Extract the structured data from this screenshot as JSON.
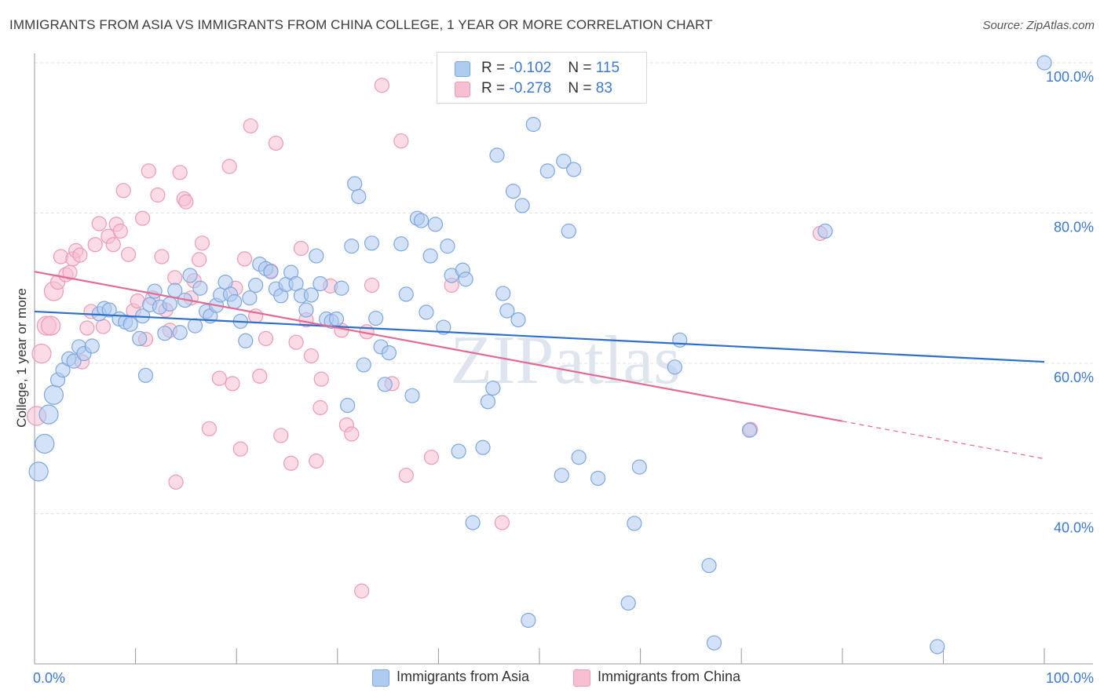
{
  "title": "IMMIGRANTS FROM ASIA VS IMMIGRANTS FROM CHINA COLLEGE, 1 YEAR OR MORE CORRELATION CHART",
  "source": "Source: ZipAtlas.com",
  "watermark": "ZIPatlas",
  "legend": {
    "rows": [
      {
        "r_label": "R = ",
        "r_value": "-0.102",
        "n_label": "N = ",
        "n_value": "115"
      },
      {
        "r_label": "R = ",
        "r_value": "-0.278",
        "n_label": "N = ",
        "n_value": "83"
      }
    ]
  },
  "bottom_legend": {
    "asia": "Immigrants from Asia",
    "china": "Immigrants from China"
  },
  "colors": {
    "asia_fill": "#aecbf0",
    "asia_stroke": "#7ea7e0",
    "asia_line": "#2f6fcc",
    "china_fill": "#f7bfd1",
    "china_stroke": "#ee9ab5",
    "china_line": "#e56a93",
    "tick_label": "#3b78d8",
    "grid": "#e4e4e4"
  },
  "chart_data": {
    "type": "scatter",
    "xlabel": "",
    "ylabel": "College, 1 year or more",
    "xlim": [
      0,
      100
    ],
    "ylim": [
      20,
      100
    ],
    "x_tick_labels": [
      "0.0%",
      "100.0%"
    ],
    "y_ticks": [
      40,
      60,
      80,
      100
    ],
    "y_tick_labels": [
      "40.0%",
      "60.0%",
      "80.0%",
      "100.0%"
    ],
    "grid": true,
    "legend_position": "top-center",
    "series": [
      {
        "name": "Immigrants from Asia",
        "trend": {
          "x": [
            0,
            100
          ],
          "y": [
            66.9,
            60.2
          ]
        },
        "points": [
          [
            0.4,
            45.6
          ],
          [
            1.0,
            49.3
          ],
          [
            1.4,
            53.2
          ],
          [
            1.9,
            55.8
          ],
          [
            2.3,
            57.8
          ],
          [
            2.8,
            59.1
          ],
          [
            3.4,
            60.6
          ],
          [
            3.9,
            60.3
          ],
          [
            4.4,
            62.2
          ],
          [
            4.9,
            61.3
          ],
          [
            5.7,
            62.3
          ],
          [
            6.4,
            66.6
          ],
          [
            6.9,
            67.3
          ],
          [
            7.4,
            67.1
          ],
          [
            8.4,
            65.9
          ],
          [
            9.0,
            65.5
          ],
          [
            9.5,
            65.2
          ],
          [
            10.4,
            63.3
          ],
          [
            10.7,
            66.3
          ],
          [
            11.0,
            58.4
          ],
          [
            11.4,
            67.8
          ],
          [
            11.9,
            69.6
          ],
          [
            12.4,
            67.5
          ],
          [
            12.9,
            64.0
          ],
          [
            13.4,
            67.9
          ],
          [
            13.9,
            69.7
          ],
          [
            14.4,
            64.1
          ],
          [
            14.9,
            68.4
          ],
          [
            15.4,
            71.7
          ],
          [
            15.9,
            65.0
          ],
          [
            16.4,
            70.0
          ],
          [
            17.0,
            66.9
          ],
          [
            17.4,
            66.3
          ],
          [
            18.0,
            67.7
          ],
          [
            18.4,
            69.1
          ],
          [
            18.9,
            70.8
          ],
          [
            19.4,
            69.2
          ],
          [
            19.8,
            68.2
          ],
          [
            20.4,
            65.6
          ],
          [
            20.9,
            63.0
          ],
          [
            21.3,
            68.7
          ],
          [
            21.9,
            70.4
          ],
          [
            22.3,
            73.2
          ],
          [
            22.9,
            72.6
          ],
          [
            23.4,
            72.2
          ],
          [
            23.9,
            69.9
          ],
          [
            24.4,
            69.0
          ],
          [
            24.9,
            70.5
          ],
          [
            25.4,
            72.1
          ],
          [
            25.9,
            70.6
          ],
          [
            26.4,
            69.0
          ],
          [
            26.9,
            67.1
          ],
          [
            27.4,
            69.1
          ],
          [
            27.9,
            74.3
          ],
          [
            28.3,
            70.6
          ],
          [
            28.9,
            65.9
          ],
          [
            29.4,
            65.6
          ],
          [
            29.9,
            65.9
          ],
          [
            30.4,
            70.0
          ],
          [
            31.0,
            54.4
          ],
          [
            31.4,
            75.6
          ],
          [
            31.7,
            83.9
          ],
          [
            32.1,
            82.2
          ],
          [
            32.6,
            59.8
          ],
          [
            33.4,
            76.0
          ],
          [
            33.8,
            66.0
          ],
          [
            34.3,
            62.2
          ],
          [
            34.7,
            57.2
          ],
          [
            35.1,
            61.4
          ],
          [
            36.3,
            75.9
          ],
          [
            36.8,
            69.2
          ],
          [
            37.4,
            55.7
          ],
          [
            37.9,
            79.3
          ],
          [
            38.3,
            79.0
          ],
          [
            38.8,
            66.8
          ],
          [
            39.2,
            74.3
          ],
          [
            39.7,
            78.5
          ],
          [
            40.5,
            64.8
          ],
          [
            40.9,
            75.6
          ],
          [
            41.3,
            71.7
          ],
          [
            42.0,
            48.3
          ],
          [
            42.4,
            72.4
          ],
          [
            42.7,
            71.2
          ],
          [
            43.4,
            38.8
          ],
          [
            44.4,
            48.8
          ],
          [
            44.9,
            54.9
          ],
          [
            45.4,
            56.7
          ],
          [
            45.8,
            87.7
          ],
          [
            46.4,
            69.3
          ],
          [
            46.8,
            67.0
          ],
          [
            47.4,
            82.9
          ],
          [
            47.9,
            65.8
          ],
          [
            48.3,
            81.0
          ],
          [
            48.9,
            25.8
          ],
          [
            49.4,
            91.8
          ],
          [
            50.8,
            85.6
          ],
          [
            52.2,
            45.1
          ],
          [
            52.4,
            86.9
          ],
          [
            52.9,
            77.6
          ],
          [
            53.4,
            85.8
          ],
          [
            53.9,
            47.5
          ],
          [
            55.8,
            44.7
          ],
          [
            58.8,
            28.1
          ],
          [
            59.4,
            38.7
          ],
          [
            59.9,
            46.2
          ],
          [
            63.4,
            59.5
          ],
          [
            63.9,
            63.1
          ],
          [
            66.8,
            33.1
          ],
          [
            67.3,
            22.8
          ],
          [
            70.8,
            51.1
          ],
          [
            78.3,
            77.6
          ],
          [
            89.4,
            22.3
          ],
          [
            100.0,
            100.0
          ]
        ]
      },
      {
        "name": "Immigrants from China",
        "trend": {
          "x": [
            0,
            80
          ],
          "y": [
            72.2,
            52.3
          ]
        },
        "trend_dashed": {
          "x": [
            80,
            100
          ],
          "y": [
            52.3,
            47.3
          ]
        },
        "points": [
          [
            0.2,
            53.0
          ],
          [
            0.7,
            61.3
          ],
          [
            1.2,
            65.0
          ],
          [
            1.6,
            65.0
          ],
          [
            1.9,
            69.6
          ],
          [
            2.3,
            70.8
          ],
          [
            2.6,
            74.2
          ],
          [
            3.1,
            71.8
          ],
          [
            3.5,
            72.1
          ],
          [
            3.8,
            73.9
          ],
          [
            4.1,
            75.0
          ],
          [
            4.5,
            74.4
          ],
          [
            4.7,
            60.2
          ],
          [
            5.2,
            64.7
          ],
          [
            5.6,
            66.9
          ],
          [
            6.0,
            75.8
          ],
          [
            6.4,
            78.6
          ],
          [
            6.8,
            64.9
          ],
          [
            7.3,
            76.9
          ],
          [
            7.8,
            75.8
          ],
          [
            8.1,
            78.5
          ],
          [
            8.5,
            77.6
          ],
          [
            8.8,
            83.0
          ],
          [
            9.3,
            74.5
          ],
          [
            9.8,
            67.0
          ],
          [
            10.2,
            68.3
          ],
          [
            10.7,
            79.3
          ],
          [
            11.0,
            63.2
          ],
          [
            11.3,
            85.6
          ],
          [
            11.7,
            68.7
          ],
          [
            12.2,
            82.4
          ],
          [
            12.6,
            74.2
          ],
          [
            13.0,
            67.1
          ],
          [
            13.4,
            64.4
          ],
          [
            13.9,
            71.4
          ],
          [
            14.0,
            44.2
          ],
          [
            14.4,
            85.4
          ],
          [
            14.8,
            81.9
          ],
          [
            15.0,
            81.5
          ],
          [
            15.5,
            68.7
          ],
          [
            15.8,
            71.0
          ],
          [
            16.3,
            73.8
          ],
          [
            16.6,
            76.0
          ],
          [
            17.3,
            51.3
          ],
          [
            18.3,
            58.0
          ],
          [
            19.3,
            86.2
          ],
          [
            19.6,
            57.3
          ],
          [
            19.9,
            70.0
          ],
          [
            20.4,
            48.6
          ],
          [
            20.8,
            73.9
          ],
          [
            21.4,
            91.6
          ],
          [
            21.9,
            66.3
          ],
          [
            22.3,
            58.3
          ],
          [
            22.9,
            63.3
          ],
          [
            23.4,
            72.3
          ],
          [
            23.9,
            89.3
          ],
          [
            24.4,
            50.4
          ],
          [
            25.4,
            46.7
          ],
          [
            25.9,
            62.8
          ],
          [
            26.4,
            75.3
          ],
          [
            26.9,
            65.8
          ],
          [
            27.4,
            61.0
          ],
          [
            27.9,
            47.0
          ],
          [
            28.3,
            54.1
          ],
          [
            28.4,
            57.9
          ],
          [
            29.3,
            70.3
          ],
          [
            30.4,
            64.4
          ],
          [
            30.9,
            51.8
          ],
          [
            31.4,
            50.6
          ],
          [
            32.4,
            29.7
          ],
          [
            32.9,
            64.2
          ],
          [
            33.4,
            70.4
          ],
          [
            34.4,
            97.0
          ],
          [
            35.4,
            57.3
          ],
          [
            36.3,
            89.6
          ],
          [
            36.8,
            45.1
          ],
          [
            39.3,
            47.5
          ],
          [
            41.3,
            70.4
          ],
          [
            46.3,
            38.8
          ],
          [
            70.9,
            51.2
          ],
          [
            77.8,
            77.3
          ]
        ]
      }
    ]
  }
}
